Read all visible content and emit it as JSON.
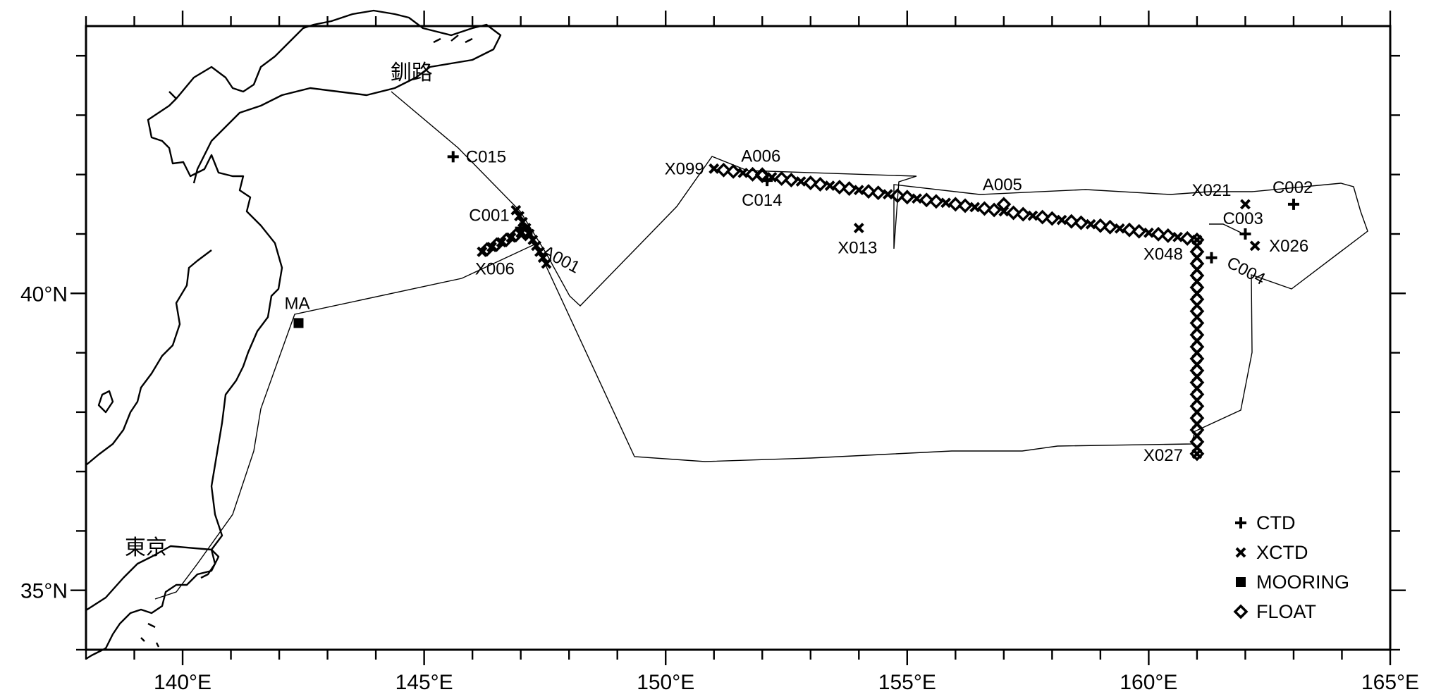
{
  "map": {
    "x_range": [
      138,
      165
    ],
    "y_range": [
      34,
      44.5
    ],
    "lon_ticks": [
      {
        "value": 140,
        "label": "140°E"
      },
      {
        "value": 145,
        "label": "145°E"
      },
      {
        "value": 150,
        "label": "150°E"
      },
      {
        "value": 155,
        "label": "155°E"
      },
      {
        "value": 160,
        "label": "160°E"
      },
      {
        "value": 165,
        "label": "165°E"
      }
    ],
    "lat_ticks": [
      {
        "value": 40,
        "label": "40°N"
      },
      {
        "value": 35,
        "label": "35°N"
      }
    ],
    "places": [
      {
        "name": "釧路",
        "lon": 144.3,
        "lat": 43.6
      },
      {
        "name": "東京",
        "lon": 138.8,
        "lat": 35.6
      }
    ],
    "stations": [
      {
        "label": "C015",
        "lon": 145.6,
        "lat": 42.3,
        "type": "CTD"
      },
      {
        "label": "C001",
        "lon": 147.0,
        "lat": 41.1,
        "type": "CTD"
      },
      {
        "label": "A001",
        "lon": 147.1,
        "lat": 41.0,
        "type": "FLOAT"
      },
      {
        "label": "X006",
        "lon": 146.2,
        "lat": 40.7,
        "type": "XCTD"
      },
      {
        "label": "MA",
        "lon": 142.4,
        "lat": 39.5,
        "type": "MOORING"
      },
      {
        "label": "X099",
        "lon": 151.0,
        "lat": 42.1,
        "type": "XCTD"
      },
      {
        "label": "A006",
        "lon": 152.0,
        "lat": 42.0,
        "type": "FLOAT"
      },
      {
        "label": "C014",
        "lon": 152.1,
        "lat": 41.9,
        "type": "CTD"
      },
      {
        "label": "X013",
        "lon": 154.0,
        "lat": 41.1,
        "type": "XCTD"
      },
      {
        "label": "A005",
        "lon": 157.0,
        "lat": 41.5,
        "type": "FLOAT"
      },
      {
        "label": "X048",
        "lon": 161.0,
        "lat": 40.9,
        "type": "XCTD"
      },
      {
        "label": "X021",
        "lon": 162.0,
        "lat": 41.5,
        "type": "XCTD"
      },
      {
        "label": "C002",
        "lon": 163.0,
        "lat": 41.5,
        "type": "CTD"
      },
      {
        "label": "C003",
        "lon": 162.0,
        "lat": 41.0,
        "type": "CTD"
      },
      {
        "label": "X026",
        "lon": 162.2,
        "lat": 40.8,
        "type": "XCTD"
      },
      {
        "label": "C004",
        "lon": 161.3,
        "lat": 40.6,
        "type": "CTD"
      },
      {
        "label": "X027",
        "lon": 161.0,
        "lat": 37.3,
        "type": "XCTD"
      }
    ],
    "legend": [
      {
        "symbol": "CTD",
        "label": "CTD"
      },
      {
        "symbol": "XCTD",
        "label": "XCTD"
      },
      {
        "symbol": "MOORING",
        "label": "MOORING"
      },
      {
        "symbol": "FLOAT",
        "label": "FLOAT"
      }
    ],
    "legend_position": "bottom-right"
  }
}
